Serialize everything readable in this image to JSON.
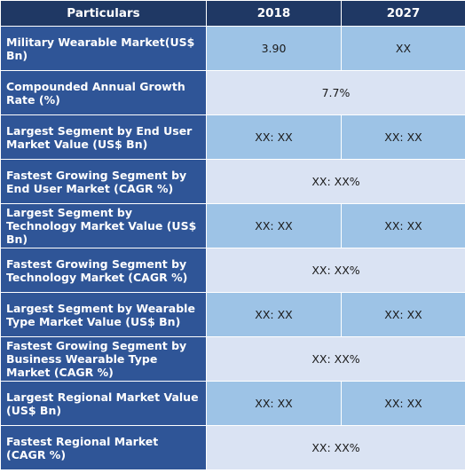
{
  "header": {
    "col1": "Particulars",
    "col2": "2018",
    "col3": "2027"
  },
  "rows": [
    {
      "label": "Military Wearable Market(US$ Bn)",
      "v2018": "3.90",
      "v2027": "XX"
    },
    {
      "label": "Compounded Annual Growth Rate (%)",
      "span": "7.7%"
    },
    {
      "label": "Largest Segment by End User Market Value (US$ Bn)",
      "v2018": "XX: XX",
      "v2027": "XX: XX"
    },
    {
      "label": "Fastest Growing Segment by End User Market (CAGR %)",
      "span": "XX: XX%"
    },
    {
      "label": "Largest Segment by Technology Market Value (US$ Bn)",
      "v2018": "XX: XX",
      "v2027": "XX: XX"
    },
    {
      "label": "Fastest Growing Segment by Technology Market (CAGR %)",
      "span": "XX: XX%"
    },
    {
      "label": "Largest Segment by Wearable Type Market Value (US$ Bn)",
      "v2018": "XX: XX",
      "v2027": "XX: XX"
    },
    {
      "label": "Fastest Growing Segment by Business Wearable Type Market (CAGR %)",
      "span": "XX: XX%"
    },
    {
      "label": "Largest Regional Market Value (US$ Bn)",
      "v2018": "XX: XX",
      "v2027": "XX: XX"
    },
    {
      "label": "Fastest Regional Market (CAGR %)",
      "span": "XX: XX%"
    }
  ]
}
